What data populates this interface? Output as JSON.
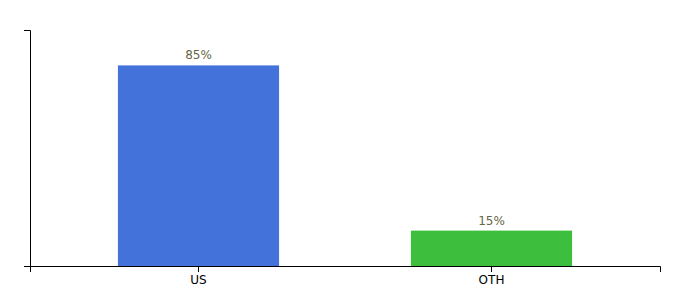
{
  "chart_data": {
    "type": "bar",
    "categories": [
      "US",
      "OTH"
    ],
    "values": [
      85,
      15
    ],
    "value_labels": [
      "85%",
      "15%"
    ],
    "colors": [
      "#4472DB",
      "#3DBE3D"
    ],
    "ylim": [
      0,
      100
    ],
    "data_labels": true,
    "tick_labels": "x",
    "grid": false
  }
}
